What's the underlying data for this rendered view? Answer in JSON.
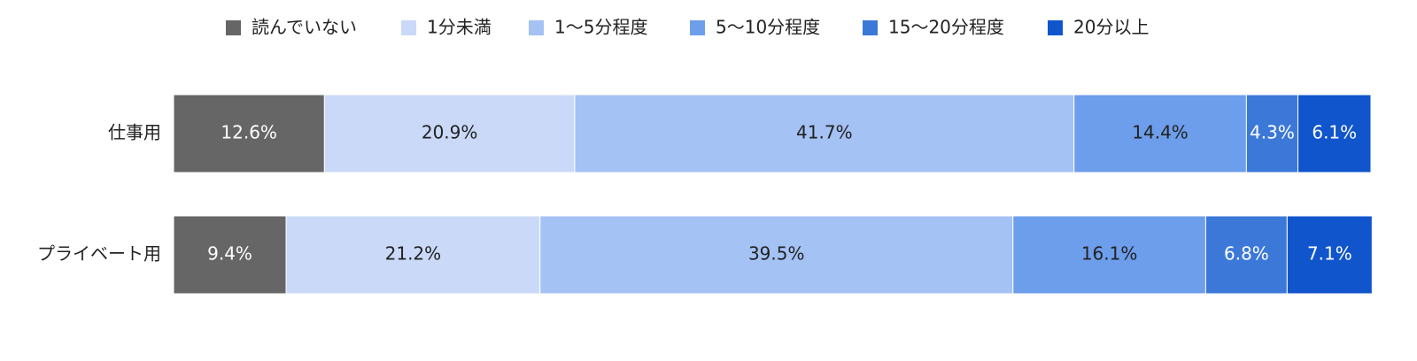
{
  "chart_data": {
    "type": "stacked-bar-horizontal",
    "categories": [
      "仕事用",
      "プライベート用"
    ],
    "xlim": [
      0,
      100
    ],
    "legend": "top",
    "series": [
      {
        "name": "読んでいない",
        "color": "#666666",
        "values": [
          12.6,
          9.4
        ],
        "value_labels": [
          "12.6%",
          "9.4%"
        ]
      },
      {
        "name": "1分未満",
        "color": "#c9d9f7",
        "values": [
          20.9,
          21.2
        ],
        "value_labels": [
          "20.9%",
          "21.2%"
        ]
      },
      {
        "name": "1〜5分程度",
        "color": "#a4c2f4",
        "values": [
          41.7,
          39.5
        ],
        "value_labels": [
          "41.7%",
          "39.5%"
        ]
      },
      {
        "name": "5〜10分程度",
        "color": "#6d9eeb",
        "values": [
          14.4,
          16.1
        ],
        "value_labels": [
          "14.4%",
          "16.1%"
        ]
      },
      {
        "name": "15〜20分程度",
        "color": "#3c78d8",
        "values": [
          4.3,
          6.8
        ],
        "value_labels": [
          "4.3%",
          "6.8%"
        ]
      },
      {
        "name": "20分以上",
        "color": "#1155cc",
        "values": [
          6.1,
          7.1
        ],
        "value_labels": [
          "6.1%",
          "7.1%"
        ]
      }
    ]
  }
}
